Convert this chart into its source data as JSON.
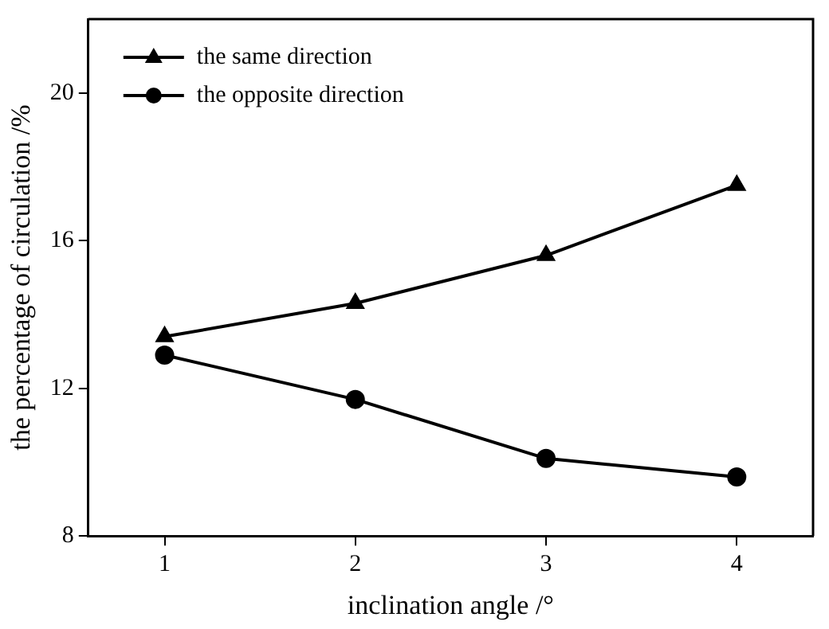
{
  "chart_data": {
    "type": "line",
    "xlabel": "inclination angle /°",
    "ylabel": "the percentage of circulation /%",
    "x": [
      1,
      2,
      3,
      4
    ],
    "series": [
      {
        "name": "the same direction",
        "color": "#000000",
        "marker": "triangle",
        "values": [
          13.4,
          14.3,
          15.6,
          17.5
        ]
      },
      {
        "name": "the opposite direction",
        "color": "#000000",
        "marker": "circle",
        "values": [
          12.9,
          11.7,
          10.1,
          9.6
        ]
      }
    ],
    "xlim": [
      0.6,
      4.4
    ],
    "xticks": [
      1,
      2,
      3,
      4
    ],
    "ylim": [
      8,
      22
    ],
    "yticks": [
      8,
      12,
      16,
      20
    ],
    "grid": false,
    "legend": "top left",
    "line_style": "solid"
  }
}
